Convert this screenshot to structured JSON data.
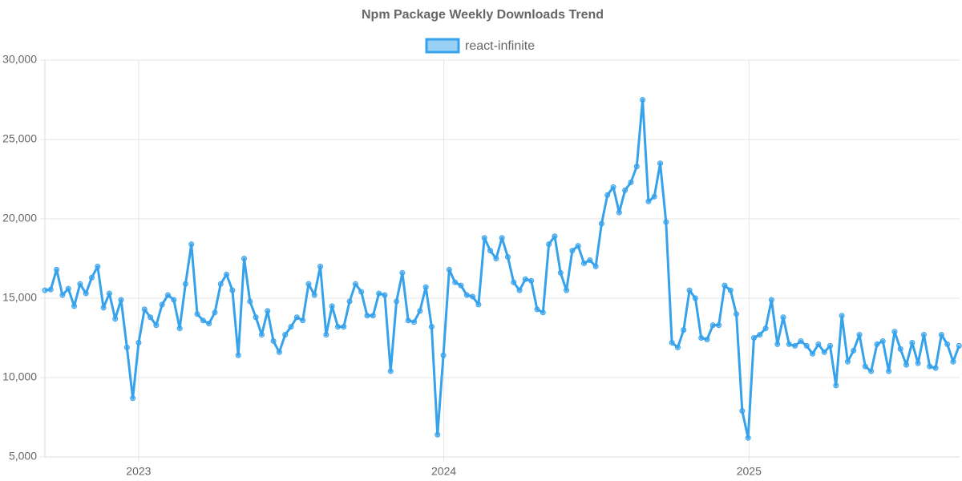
{
  "chart_data": {
    "type": "line",
    "title": "Npm Package Weekly Downloads Trend",
    "x": [
      2022.693,
      2022.7122,
      2022.7314,
      2022.7506,
      2022.7698,
      2022.789,
      2022.8082,
      2022.8274,
      2022.8466,
      2022.8658,
      2022.885,
      2022.9042,
      2022.9234,
      2022.9426,
      2022.9618,
      2022.981,
      2023.0002,
      2023.0194,
      2023.0386,
      2023.0578,
      2023.077,
      2023.0962,
      2023.1154,
      2023.1346,
      2023.1538,
      2023.173,
      2023.1922,
      2023.2114,
      2023.2306,
      2023.2498,
      2023.269,
      2023.2882,
      2023.3074,
      2023.3266,
      2023.3458,
      2023.365,
      2023.3842,
      2023.4034,
      2023.4226,
      2023.4418,
      2023.461,
      2023.4802,
      2023.4994,
      2023.5186,
      2023.5378,
      2023.557,
      2023.5762,
      2023.5954,
      2023.6146,
      2023.6338,
      2023.653,
      2023.6722,
      2023.6914,
      2023.7106,
      2023.7298,
      2023.749,
      2023.7682,
      2023.7874,
      2023.8066,
      2023.8258,
      2023.845,
      2023.8642,
      2023.8834,
      2023.9026,
      2023.9218,
      2023.941,
      2023.9602,
      2023.9794,
      2023.9986,
      2024.0178,
      2024.037,
      2024.0562,
      2024.0754,
      2024.0946,
      2024.1138,
      2024.133,
      2024.1522,
      2024.1714,
      2024.1906,
      2024.2098,
      2024.229,
      2024.2482,
      2024.2674,
      2024.2866,
      2024.3058,
      2024.325,
      2024.3442,
      2024.3634,
      2024.3826,
      2024.4018,
      2024.421,
      2024.4402,
      2024.4594,
      2024.4786,
      2024.4978,
      2024.517,
      2024.5362,
      2024.5554,
      2024.5746,
      2024.5938,
      2024.613,
      2024.6322,
      2024.6514,
      2024.6706,
      2024.6898,
      2024.709,
      2024.7282,
      2024.7474,
      2024.7666,
      2024.7858,
      2024.805,
      2024.8242,
      2024.8434,
      2024.8626,
      2024.8818,
      2024.901,
      2024.9202,
      2024.9394,
      2024.9586,
      2024.9778,
      2024.997,
      2025.0162,
      2025.0354,
      2025.0546,
      2025.0738,
      2025.093,
      2025.1122,
      2025.1314,
      2025.1506,
      2025.1698,
      2025.189,
      2025.2082,
      2025.2274,
      2025.2466,
      2025.2658,
      2025.285,
      2025.3042,
      2025.3234,
      2025.3426,
      2025.3618,
      2025.381,
      2025.4002,
      2025.4194,
      2025.4386,
      2025.4578,
      2025.477,
      2025.4962,
      2025.5154,
      2025.5346,
      2025.5538,
      2025.573,
      2025.5922,
      2025.6114,
      2025.6306,
      2025.6498,
      2025.669,
      2025.6882
    ],
    "series": [
      {
        "name": "react-infinite",
        "color": "#36a2eb",
        "values": [
          15500,
          15550,
          16800,
          15200,
          15600,
          14500,
          15900,
          15300,
          16300,
          17000,
          14400,
          15300,
          13700,
          14900,
          11900,
          8700,
          12200,
          14300,
          13800,
          13300,
          14600,
          15200,
          14900,
          13100,
          15900,
          18400,
          14000,
          13600,
          13400,
          14100,
          15900,
          16500,
          15500,
          11400,
          17500,
          14800,
          13800,
          12700,
          14200,
          12300,
          11600,
          12700,
          13200,
          13800,
          13600,
          15900,
          15200,
          17000,
          12700,
          14500,
          13200,
          13200,
          14800,
          15900,
          15400,
          13900,
          13900,
          15300,
          15200,
          10400,
          14800,
          16600,
          13600,
          13500,
          14200,
          15700,
          13200,
          6400,
          11400,
          16800,
          16000,
          15800,
          15200,
          15100,
          14600,
          18800,
          18000,
          17500,
          18800,
          17600,
          16000,
          15500,
          16200,
          16100,
          14300,
          14100,
          18400,
          18900,
          16600,
          15500,
          18000,
          18300,
          17200,
          17400,
          17000,
          19700,
          21500,
          22000,
          20400,
          21800,
          22300,
          23300,
          27500,
          21100,
          21400,
          23500,
          19800,
          12200,
          11900,
          13000,
          15500,
          15000,
          12500,
          12400,
          13300,
          13300,
          15800,
          15500,
          14000,
          7900,
          6200,
          12500,
          12700,
          13100,
          14900,
          12100,
          13800,
          12100,
          12000,
          12300,
          12000,
          11500,
          12100,
          11600,
          12000,
          9500,
          13900,
          11000,
          11700,
          12700,
          10700,
          10400,
          12100,
          12300,
          10400,
          12900,
          11800,
          10800,
          12200,
          10900,
          12700,
          10700,
          10600,
          12700,
          12100,
          11000,
          12000
        ]
      }
    ],
    "xlim": [
      2022.693,
      2025.69
    ],
    "xticks": [
      2023,
      2024,
      2025
    ],
    "ylim": [
      5000,
      30000
    ],
    "yticks": [
      {
        "value": 5000,
        "label": "5,000"
      },
      {
        "value": 10000,
        "label": "10,000"
      },
      {
        "value": 15000,
        "label": "15,000"
      },
      {
        "value": 20000,
        "label": "20,000"
      },
      {
        "value": 25000,
        "label": "25,000"
      },
      {
        "value": 30000,
        "label": "30,000"
      }
    ],
    "grid": true,
    "legend": "top"
  }
}
